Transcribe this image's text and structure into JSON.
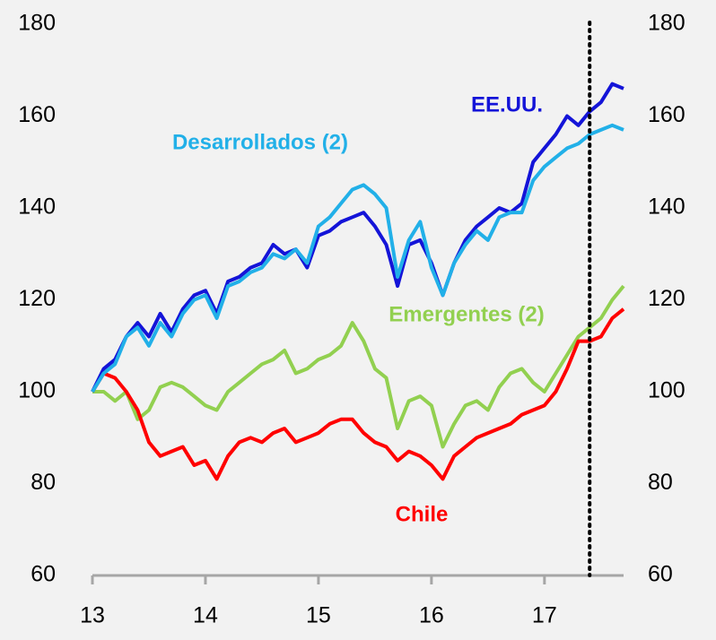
{
  "chart_data": {
    "type": "line",
    "x": [
      13.0,
      13.1,
      13.2,
      13.3,
      13.4,
      13.5,
      13.6,
      13.7,
      13.8,
      13.9,
      14.0,
      14.1,
      14.2,
      14.3,
      14.4,
      14.5,
      14.6,
      14.7,
      14.8,
      14.9,
      15.0,
      15.1,
      15.2,
      15.3,
      15.4,
      15.5,
      15.6,
      15.7,
      15.8,
      15.9,
      16.0,
      16.1,
      16.2,
      16.3,
      16.4,
      16.5,
      16.6,
      16.7,
      16.8,
      16.9,
      17.0,
      17.1,
      17.2,
      17.3,
      17.4,
      17.5,
      17.6,
      17.7
    ],
    "series": [
      {
        "name": "Emergentes (2)",
        "color": "#92d050",
        "values": [
          100,
          100,
          98,
          100,
          94,
          96,
          101,
          102,
          101,
          99,
          97,
          96,
          100,
          102,
          104,
          106,
          107,
          109,
          104,
          105,
          107,
          108,
          110,
          115,
          111,
          105,
          103,
          92,
          98,
          99,
          97,
          88,
          93,
          97,
          98,
          96,
          101,
          104,
          105,
          102,
          100,
          104,
          108,
          112,
          114,
          116,
          120,
          123
        ]
      },
      {
        "name": "Chile",
        "color": "#ff0000",
        "values": [
          100,
          104,
          103,
          100,
          96,
          89,
          86,
          87,
          88,
          84,
          85,
          81,
          86,
          89,
          90,
          89,
          91,
          92,
          89,
          90,
          91,
          93,
          94,
          94,
          91,
          89,
          88,
          85,
          87,
          86,
          84,
          81,
          86,
          88,
          90,
          91,
          92,
          93,
          95,
          96,
          97,
          100,
          105,
          111,
          111,
          112,
          116,
          118
        ]
      },
      {
        "name": "EE.UU.",
        "color": "#1414d8",
        "values": [
          100,
          105,
          107,
          112,
          115,
          112,
          117,
          113,
          118,
          121,
          122,
          117,
          124,
          125,
          127,
          128,
          132,
          130,
          131,
          127,
          134,
          135,
          137,
          138,
          139,
          136,
          132,
          123,
          132,
          133,
          128,
          121,
          128,
          133,
          136,
          138,
          140,
          139,
          141,
          150,
          153,
          156,
          160,
          158,
          161,
          163,
          167,
          166
        ]
      },
      {
        "name": "Desarrollados (2)",
        "color": "#22b0e8",
        "values": [
          100,
          104,
          106,
          112,
          114,
          110,
          115,
          112,
          117,
          120,
          121,
          116,
          123,
          124,
          126,
          127,
          130,
          129,
          131,
          128,
          136,
          138,
          141,
          144,
          145,
          143,
          140,
          125,
          133,
          137,
          127,
          121,
          128,
          132,
          135,
          133,
          138,
          139,
          139,
          146,
          149,
          151,
          153,
          154,
          156,
          157,
          158,
          157
        ]
      }
    ],
    "xlim": [
      13,
      17.7
    ],
    "xticks": [
      13,
      14,
      15,
      16,
      17
    ],
    "ylim": [
      60,
      180
    ],
    "yticks": [
      60,
      80,
      100,
      120,
      140,
      160,
      180
    ],
    "y2lim": [
      60,
      180
    ],
    "y2ticks": [
      60,
      80,
      100,
      120,
      140,
      160,
      180
    ],
    "vline_x": 17.4
  }
}
